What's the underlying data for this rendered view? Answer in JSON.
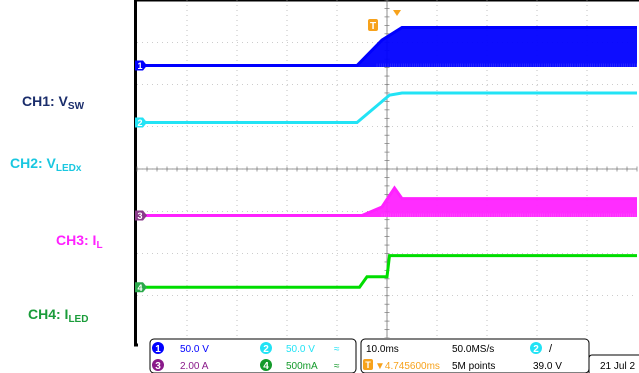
{
  "channel_labels": [
    {
      "prefix": "CH1: V",
      "sub": "SW",
      "color": "#1a2d6b"
    },
    {
      "prefix": "CH2: V",
      "sub": "LEDx",
      "color": "#19c7e0"
    },
    {
      "prefix": "CH3: I",
      "sub": "L",
      "color": "#ff22ff"
    },
    {
      "prefix": "CH4: I",
      "sub": "LED",
      "color": "#1a9c3a"
    }
  ],
  "trigger_marker": "T",
  "info_bar": {
    "ch1_num": "1",
    "ch1_scale": "50.0 V",
    "ch2_num": "2",
    "ch2_scale": "50.0 V",
    "ch3_num": "3",
    "ch3_scale": "2.00 A",
    "ch4_num": "4",
    "ch4_scale": "500mA",
    "bw_symbol": "≈",
    "timebase": "10.0ms",
    "sample_rate": "50.0MS/s",
    "record_length": "5M points",
    "trigger_offset": "▼4.745600ms",
    "trigger_channel": "2",
    "trigger_slope": "/",
    "trigger_level": "39.0 V",
    "date": "21 Jul  2"
  },
  "colors": {
    "ch1": "#0000ff",
    "ch2": "#22e3f5",
    "ch3": "#ff22ff",
    "ch4": "#00dd00",
    "trigger": "#f7a21b",
    "grid": "#9a9a9a"
  },
  "chart_data": {
    "type": "line",
    "title": "",
    "xlabel": "",
    "ylabel": "",
    "x_unit": "div",
    "xlim": [
      0,
      10
    ],
    "ylim": [
      0,
      8
    ],
    "grid": true,
    "series": [
      {
        "name": "CH1: VSW",
        "baseline": 6.45,
        "x": [
          0,
          4.4,
          4.65,
          4.9,
          5.3,
          10
        ],
        "y": [
          6.45,
          6.45,
          6.75,
          7.05,
          7.35,
          7.35
        ],
        "switching": true
      },
      {
        "name": "CH2: VLEDx",
        "baseline": 5.1,
        "x": [
          0,
          4.4,
          5.05,
          5.3,
          10
        ],
        "y": [
          5.1,
          5.1,
          5.75,
          5.8,
          5.8
        ]
      },
      {
        "name": "CH3: IL",
        "baseline": 2.9,
        "x": [
          0,
          4.5,
          4.9,
          5.15,
          5.3,
          10
        ],
        "y": [
          2.9,
          2.9,
          3.1,
          3.55,
          3.3,
          3.3
        ],
        "switching": true
      },
      {
        "name": "CH4: ILED",
        "baseline": 1.2,
        "x": [
          0,
          4.45,
          4.6,
          5.0,
          5.05,
          10
        ],
        "y": [
          1.2,
          1.2,
          1.45,
          1.45,
          1.95,
          1.95
        ]
      }
    ]
  }
}
